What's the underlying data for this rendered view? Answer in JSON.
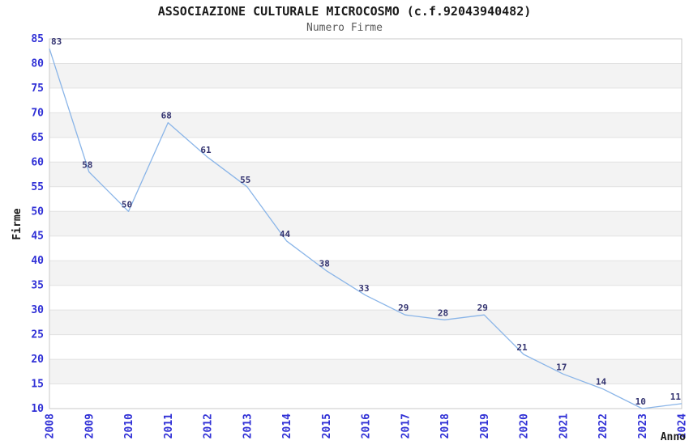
{
  "title": "ASSOCIAZIONE CULTURALE MICROCOSMO (c.f.92043940482)",
  "subtitle": "Numero Firme",
  "chart_data": {
    "type": "line",
    "x": [
      2008,
      2009,
      2010,
      2011,
      2012,
      2013,
      2014,
      2015,
      2016,
      2017,
      2018,
      2019,
      2020,
      2021,
      2022,
      2023,
      2024
    ],
    "series": [
      {
        "name": "Numero Firme",
        "values": [
          83,
          58,
          50,
          68,
          61,
          55,
          44,
          38,
          33,
          29,
          28,
          29,
          21,
          17,
          14,
          10,
          11
        ]
      }
    ],
    "xlabel": "Anno",
    "ylabel": "Firme",
    "ylim": [
      10,
      85
    ],
    "ytick_step": 5,
    "grid": "horizontal-gridlines-with-alternating-bands",
    "legend": "none",
    "markers": "none",
    "data_labels": "shown-above-points",
    "x_tick_rotation": -90
  },
  "colors": {
    "line": "#8ab5e8",
    "axis_tick_label": "#3030d6",
    "data_label": "#333370",
    "band": "#f3f3f3",
    "gridline": "#e2e2e2",
    "frame": "#c9c9c9",
    "title": "#1a1a1a",
    "subtitle": "#5a5a5a",
    "axis_title": "#1a1a1a",
    "background": "#ffffff"
  }
}
